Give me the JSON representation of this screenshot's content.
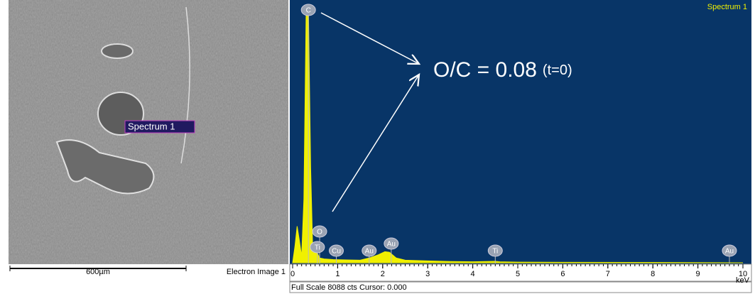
{
  "image": {
    "marker_label": "Spectrum 1",
    "scale_label": "600µm",
    "caption": "Electron Image 1"
  },
  "chart_data": {
    "type": "area",
    "color": "#f0f000",
    "background": "#083567",
    "corner_label": "Spectrum 1",
    "annotation": {
      "main": "O/C = 0.08",
      "sub": "(t=0)"
    },
    "x": [
      0,
      0.05,
      0.1,
      0.15,
      0.2,
      0.25,
      0.3,
      0.35,
      0.4,
      0.45,
      0.5,
      0.55,
      0.6,
      0.7,
      0.9,
      1.2,
      1.5,
      1.7,
      1.9,
      2.05,
      2.15,
      2.3,
      2.5,
      3.0,
      3.5,
      4.0,
      4.5,
      4.6,
      5.0,
      6.0,
      8.0,
      10.0
    ],
    "values": [
      0,
      500,
      1150,
      700,
      200,
      2000,
      7900,
      8050,
      3000,
      200,
      650,
      300,
      150,
      120,
      100,
      90,
      80,
      150,
      250,
      350,
      330,
      150,
      80,
      60,
      40,
      30,
      45,
      30,
      20,
      15,
      10,
      0
    ],
    "xlim": [
      0,
      10
    ],
    "ylim": [
      0,
      8088
    ],
    "xticks": [
      0,
      1,
      2,
      3,
      4,
      5,
      6,
      7,
      8,
      9,
      10
    ],
    "x_unit": "keV",
    "peak_labels": [
      {
        "label": "C",
        "x": 0.35
      },
      {
        "label": "O",
        "x": 0.6
      },
      {
        "label": "Ti",
        "x": 0.55
      },
      {
        "label": "Cu",
        "x": 0.97
      },
      {
        "label": "Au",
        "x": 1.7
      },
      {
        "label": "Au",
        "x": 2.19
      },
      {
        "label": "Ti",
        "x": 4.5
      },
      {
        "label": "Au",
        "x": 9.7
      }
    ],
    "footer": "Full Scale 8088 cts Cursor: 0.000"
  }
}
